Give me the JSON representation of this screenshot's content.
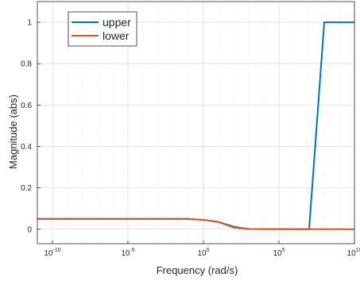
{
  "chart_data": {
    "type": "line",
    "xlabel": "Frequency (rad/s)",
    "ylabel": "Magnitude (abs)",
    "xscale": "log",
    "xlim": [
      1e-11,
      10000000000.0
    ],
    "ylim": [
      -0.07,
      1.1
    ],
    "grid": true,
    "legend_position": "top-left",
    "x_ticks": [
      {
        "value": 1e-10,
        "base": "10",
        "exp": "-10"
      },
      {
        "value": 1e-05,
        "base": "10",
        "exp": "-5"
      },
      {
        "value": 1,
        "base": "10",
        "exp": "0"
      },
      {
        "value": 100000.0,
        "base": "10",
        "exp": "5"
      },
      {
        "value": 10000000000.0,
        "base": "10",
        "exp": "10"
      }
    ],
    "y_ticks": [
      {
        "value": 0,
        "label": "0"
      },
      {
        "value": 0.2,
        "label": "0.2"
      },
      {
        "value": 0.4,
        "label": "0.4"
      },
      {
        "value": 0.6,
        "label": "0.6"
      },
      {
        "value": 0.8,
        "label": "0.8"
      },
      {
        "value": 1,
        "label": "1"
      }
    ],
    "series": [
      {
        "name": "upper",
        "color": "#0072BD",
        "x": [
          1e-11,
          0.001,
          0.1,
          1,
          10,
          100,
          1000,
          1000000.0,
          10000000.0,
          100000000.0,
          10000000000.0
        ],
        "y": [
          0.05,
          0.05,
          0.05,
          0.045,
          0.035,
          0.012,
          0.001,
          0.0,
          0.0,
          1.0,
          1.0
        ]
      },
      {
        "name": "lower",
        "color": "#D95319",
        "x": [
          1e-11,
          0.001,
          0.1,
          1,
          10,
          100,
          1000,
          1000000.0,
          10000000.0,
          100000000.0,
          10000000000.0
        ],
        "y": [
          0.05,
          0.05,
          0.05,
          0.045,
          0.035,
          0.008,
          0.001,
          0.0,
          0.0,
          0.0,
          0.0
        ]
      }
    ]
  }
}
